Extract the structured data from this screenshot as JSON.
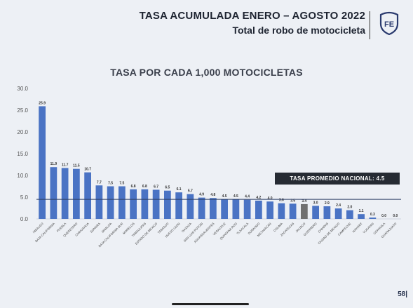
{
  "header": {
    "title_line1": "TASA ACUMULADA ENERO – AGOSTO 2022",
    "title_line2": "Total de robo de motocicleta",
    "logo_text": "FE"
  },
  "page_number": "58|",
  "colors": {
    "bar": "#4a73c4",
    "bar_highlight": "#707070",
    "avg_line": "#2c3e66",
    "avg_box": "#262b33"
  },
  "chart_data": {
    "type": "bar",
    "title": "TASA POR CADA 1,000 MOTOCICLETAS",
    "categories": [
      "HIDALGO",
      "BAJA CALIFORNIA",
      "PUEBLA",
      "QUERETARO",
      "CHIHUAHUA",
      "SONORA",
      "SINALOA",
      "BAJA CALIFORNIA SUR",
      "MORELOS",
      "TAMAULIPAS",
      "ESTADO DE MEXICO",
      "TABASCO",
      "NUEVO LEON",
      "OAXACA",
      "SAN LUIS POTOSI",
      "AGUASCALIENTES",
      "VERACRUZ",
      "QUINTANA ROO",
      "TLAXCALA",
      "DURANGO",
      "MICHOACAN",
      "COLIMA",
      "ZACATECAS",
      "JALISCO",
      "GUERRERO",
      "CHIAPAS",
      "CIUDAD DE MEXICO",
      "CAMPECHE",
      "NAYARIT",
      "YUCATAN",
      "COAHUILA",
      "GUANAJUATO"
    ],
    "values": [
      25.9,
      11.9,
      11.7,
      11.5,
      10.7,
      7.7,
      7.5,
      7.5,
      6.8,
      6.8,
      6.7,
      6.5,
      6.1,
      5.7,
      4.9,
      4.8,
      4.5,
      4.5,
      4.4,
      4.2,
      4.0,
      3.6,
      3.5,
      3.4,
      3.0,
      2.9,
      2.4,
      2.0,
      1.1,
      0.3,
      0.0,
      0.0
    ],
    "value_labels": [
      "25.9",
      "11.9",
      "11.7",
      "11.5",
      "10.7",
      "7.7",
      "7.5",
      "7.5",
      "6.8",
      "6.8",
      "6.7",
      "6.5",
      "6.1",
      "5.7",
      "4.9",
      "4.8",
      "4.5",
      "4.5",
      "4.4",
      "4.2",
      "4.0",
      "3.6",
      "3.5",
      "3.4",
      "3.0",
      "2.9",
      "2.4",
      "2.0",
      "1.1",
      "0.3",
      "0.0",
      "0.0"
    ],
    "highlight_category": "JALISCO",
    "y_ticks": [
      "0.0",
      "5.0",
      "10.0",
      "15.0",
      "20.0",
      "25.0",
      "30.0"
    ],
    "ylim": [
      0,
      30
    ],
    "average": 4.5,
    "average_label": "TASA PROMEDIO NACIONAL:  4.5",
    "grid": false,
    "legend": "none"
  }
}
